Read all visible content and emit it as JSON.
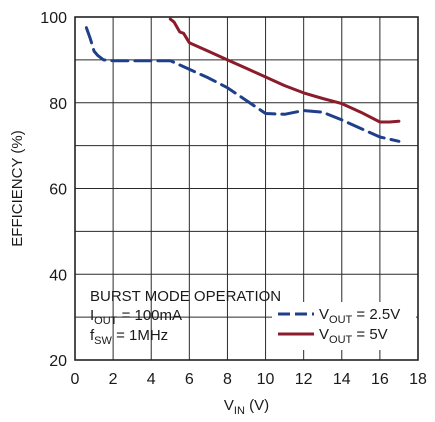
{
  "chart_data": {
    "type": "line",
    "xlabel": "V",
    "xlabel_sub": "IN",
    "xlabel_unit": " (V)",
    "ylabel": "EFFICIENCY (%)",
    "xlim": [
      0,
      18
    ],
    "ylim": [
      20,
      100
    ],
    "xticks": [
      "0",
      "2",
      "4",
      "6",
      "8",
      "10",
      "12",
      "14",
      "16",
      "18"
    ],
    "yticks": [
      "20",
      "40",
      "60",
      "80",
      "100"
    ],
    "grid": true,
    "annotation": {
      "line1": "BURST MODE OPERATION",
      "line2_main": "I",
      "line2_sub": "OUT",
      "line2_rest": " = 100mA",
      "line3_main": "f",
      "line3_sub": "SW",
      "line3_rest": " = 1MHz"
    },
    "legend_position": "bottom-right",
    "series": [
      {
        "name_main": "V",
        "name_sub": "OUT",
        "name_rest": " = 2.5V",
        "color": "#1f3f8a",
        "dash": "dashed",
        "x": [
          0.6,
          0.8,
          1.0,
          1.2,
          1.5,
          2.0,
          3.0,
          4.0,
          5.0,
          6.0,
          7.0,
          8.0,
          9.0,
          10.0,
          11.0,
          12.0,
          13.0,
          14.0,
          15.0,
          16.0,
          17.0
        ],
        "y": [
          97.5,
          95.0,
          92.0,
          91.0,
          90.0,
          89.8,
          89.8,
          89.8,
          89.8,
          87.8,
          85.8,
          83.5,
          80.5,
          77.5,
          77.3,
          78.2,
          77.8,
          76.0,
          74.0,
          72.0,
          71.0
        ]
      },
      {
        "name_main": "V",
        "name_sub": "OUT",
        "name_rest": " = 5V",
        "color": "#8b1c2c",
        "dash": "solid",
        "x": [
          5.0,
          5.2,
          5.5,
          5.7,
          6.0,
          7.0,
          8.0,
          9.0,
          10.0,
          11.0,
          12.0,
          13.0,
          14.0,
          15.0,
          16.0,
          16.5,
          17.0
        ],
        "y": [
          99.5,
          98.8,
          96.5,
          96.2,
          94.0,
          92.0,
          90.0,
          88.0,
          86.0,
          84.0,
          82.3,
          81.0,
          79.8,
          77.8,
          75.5,
          75.5,
          75.7
        ]
      }
    ]
  }
}
